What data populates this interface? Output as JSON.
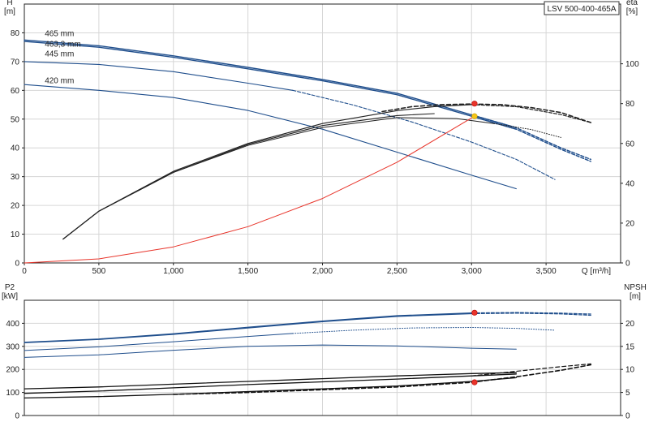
{
  "chart_data": [
    {
      "name": "pump-curve",
      "type": "line",
      "title": "LSV 500-400-465A",
      "xlabel": "Q [m³/h]",
      "ylabel": "H\n[m]",
      "y2label": "eta\n[%]",
      "xlim": [
        0,
        4000
      ],
      "ylim": [
        0,
        90
      ],
      "y2lim": [
        0,
        130
      ],
      "x_ticks": [
        0,
        500,
        1000,
        1500,
        2000,
        2500,
        3000,
        3500
      ],
      "x_tick_labels": [
        "0",
        "500",
        "1,000",
        "1,500",
        "2,000",
        "2,500",
        "3,000",
        "3,500"
      ],
      "y_ticks": [
        0,
        10,
        20,
        30,
        40,
        50,
        60,
        70,
        80
      ],
      "y2_ticks": [
        0,
        20,
        40,
        60,
        80,
        100
      ],
      "grid": true,
      "annotations": [
        {
          "text": "465 mm",
          "x": 50,
          "y": 78.8
        },
        {
          "text": "463,3 mm",
          "x": 50,
          "y": 75.2
        },
        {
          "text": "445 mm",
          "x": 50,
          "y": 71.8
        },
        {
          "text": "420 mm",
          "x": 50,
          "y": 62.5
        }
      ],
      "series": [
        {
          "role": "head",
          "axis": "left",
          "color": "#1f4e8c",
          "width": 1.4,
          "dash": "",
          "x": [
            0,
            500,
            1000,
            1500,
            2000,
            2500,
            3000,
            3300
          ],
          "y": [
            77.5,
            75.5,
            72,
            68,
            63.8,
            59,
            51.5,
            47
          ]
        },
        {
          "role": "head",
          "axis": "left",
          "color": "#1f4e8c",
          "width": 1.4,
          "dash": "4 2",
          "x": [
            3000,
            3300,
            3600,
            3800
          ],
          "y": [
            51.5,
            47,
            40,
            36
          ]
        },
        {
          "role": "head",
          "axis": "left",
          "color": "#1f4e8c",
          "width": 1.4,
          "dash": "",
          "x": [
            0,
            500,
            1000,
            1500,
            2000,
            2500,
            3000,
            3300
          ],
          "y": [
            77,
            75,
            71.5,
            67.5,
            63.3,
            58.5,
            51,
            46.5
          ]
        },
        {
          "role": "head",
          "axis": "left",
          "color": "#1f4e8c",
          "width": 1.4,
          "dash": "4 2",
          "x": [
            3000,
            3300,
            3600,
            3800
          ],
          "y": [
            51,
            46.5,
            39.5,
            35.3
          ]
        },
        {
          "role": "head",
          "axis": "left",
          "color": "#1f4e8c",
          "width": 1.1,
          "dash": "",
          "x": [
            0,
            500,
            1000,
            1500,
            1800
          ],
          "y": [
            70,
            69,
            66.5,
            62.5,
            60
          ]
        },
        {
          "role": "head",
          "axis": "left",
          "color": "#1f4e8c",
          "width": 1.1,
          "dash": "4 2",
          "x": [
            1800,
            2200,
            2600,
            3000,
            3300,
            3560
          ],
          "y": [
            60,
            55,
            49,
            42,
            36,
            29
          ]
        },
        {
          "role": "head",
          "axis": "left",
          "color": "#1f4e8c",
          "width": 1.1,
          "dash": "",
          "x": [
            0,
            500,
            1000,
            1500,
            2000,
            2500,
            3000,
            3300
          ],
          "y": [
            62,
            60,
            57.5,
            53,
            46.5,
            38.5,
            30.5,
            25.8
          ]
        },
        {
          "role": "eta",
          "axis": "right",
          "color": "#222222",
          "width": 1.2,
          "dash": "",
          "x": [
            260,
            500,
            1000,
            1500,
            2000,
            2500,
            2750,
            3000
          ],
          "y": [
            12,
            26,
            46,
            60,
            70,
            76.5,
            78.5,
            79.5
          ]
        },
        {
          "role": "eta",
          "axis": "right",
          "color": "#222222",
          "width": 1.2,
          "dash": "4 2",
          "x": [
            3000,
            3300,
            3600,
            3800
          ],
          "y": [
            79.5,
            78.5,
            74.5,
            70.5
          ]
        },
        {
          "role": "eta",
          "axis": "right",
          "color": "#222222",
          "width": 1.1,
          "dash": "",
          "x": [
            260,
            500,
            1000,
            1500,
            2000,
            2500,
            2750
          ],
          "y": [
            12,
            26,
            45.5,
            59.5,
            69,
            74,
            75
          ]
        },
        {
          "role": "eta",
          "axis": "right",
          "color": "#222222",
          "width": 1.0,
          "dash": "",
          "x": [
            260,
            500,
            1000,
            1500,
            2000,
            2500,
            2900,
            3150
          ],
          "y": [
            12,
            26,
            45.5,
            59,
            68,
            73,
            72.5,
            70
          ]
        },
        {
          "role": "eta",
          "axis": "right",
          "color": "#222222",
          "width": 1.0,
          "dash": "1 2",
          "x": [
            3150,
            3400,
            3600
          ],
          "y": [
            70,
            67,
            63
          ]
        },
        {
          "role": "eta",
          "axis": "right",
          "color": "#222222",
          "width": 1.6,
          "dash": "5 3",
          "x": [
            2400,
            2600,
            2800,
            3000,
            3200,
            3400,
            3600,
            3800
          ],
          "y": [
            76,
            78.5,
            79.5,
            79.8,
            79.5,
            78,
            75.5,
            70.5
          ]
        },
        {
          "role": "system",
          "axis": "left",
          "color": "#e8342a",
          "width": 1.0,
          "dash": "",
          "x": [
            0,
            500,
            1000,
            1500,
            2000,
            2500,
            3020
          ],
          "y": [
            0,
            1.4,
            5.6,
            12.6,
            22.4,
            35,
            51
          ]
        }
      ],
      "points": [
        {
          "x": 3020,
          "y": 51,
          "axis": "left",
          "color": "#f5c518"
        },
        {
          "x": 3020,
          "y": 80,
          "axis": "right",
          "color": "#e8342a"
        }
      ]
    },
    {
      "name": "power-npsh",
      "type": "line",
      "xlabel": "",
      "ylabel": "P2\n[kW]",
      "y2label": "NPSH\n[m]",
      "xlim": [
        0,
        4000
      ],
      "ylim": [
        0,
        500
      ],
      "y2lim": [
        0,
        25
      ],
      "y_ticks": [
        0,
        100,
        200,
        300,
        400
      ],
      "y2_ticks": [
        0,
        5,
        10,
        15,
        20
      ],
      "grid": true,
      "series": [
        {
          "role": "power",
          "axis": "left",
          "color": "#1f4e8c",
          "width": 1.2,
          "dash": "",
          "x": [
            0,
            500,
            1000,
            1500,
            2000,
            2500,
            3000
          ],
          "y": [
            318,
            332,
            355,
            383,
            410,
            433,
            445
          ]
        },
        {
          "role": "power",
          "axis": "left",
          "color": "#1f4e8c",
          "width": 1.2,
          "dash": "4 2",
          "x": [
            3000,
            3300,
            3600,
            3800
          ],
          "y": [
            445,
            447,
            444,
            440
          ]
        },
        {
          "role": "power",
          "axis": "left",
          "color": "#1f4e8c",
          "width": 1.2,
          "dash": "",
          "x": [
            0,
            500,
            1000,
            1500,
            2000,
            2500,
            3000
          ],
          "y": [
            316,
            330,
            352,
            380,
            407,
            430,
            442
          ]
        },
        {
          "role": "power",
          "axis": "left",
          "color": "#1f4e8c",
          "width": 1.2,
          "dash": "4 2",
          "x": [
            3000,
            3300,
            3600,
            3800
          ],
          "y": [
            442,
            444,
            441,
            435
          ]
        },
        {
          "role": "power",
          "axis": "left",
          "color": "#1f4e8c",
          "width": 1.0,
          "dash": "",
          "x": [
            0,
            500,
            1000,
            1500,
            1800
          ],
          "y": [
            282,
            298,
            320,
            343,
            356
          ]
        },
        {
          "role": "power",
          "axis": "left",
          "color": "#1f4e8c",
          "width": 1.0,
          "dash": "1 2",
          "x": [
            1800,
            2200,
            2600,
            3000,
            3300,
            3560
          ],
          "y": [
            356,
            370,
            380,
            382,
            378,
            370
          ]
        },
        {
          "role": "power",
          "axis": "left",
          "color": "#1f4e8c",
          "width": 1.0,
          "dash": "",
          "x": [
            0,
            500,
            1000,
            1500,
            2000,
            2500,
            3000,
            3300
          ],
          "y": [
            252,
            263,
            283,
            300,
            306,
            302,
            292,
            288
          ]
        },
        {
          "role": "npsh",
          "axis": "right",
          "color": "#111111",
          "width": 1.3,
          "dash": "",
          "x": [
            0,
            500,
            1000,
            1500,
            2000,
            2500,
            3000,
            3300
          ],
          "y": [
            5.8,
            6.2,
            6.8,
            7.4,
            8.0,
            8.6,
            9.1,
            9.3
          ]
        },
        {
          "role": "npsh",
          "axis": "right",
          "color": "#111111",
          "width": 1.3,
          "dash": "",
          "x": [
            0,
            500,
            1000,
            1500,
            2000,
            2500,
            3000,
            3300
          ],
          "y": [
            4.8,
            5.3,
            6.0,
            6.7,
            7.3,
            7.9,
            8.6,
            9.0
          ]
        },
        {
          "role": "npsh",
          "axis": "right",
          "color": "#111111",
          "width": 1.3,
          "dash": "",
          "x": [
            0,
            500,
            1000,
            1500,
            2000,
            2500,
            3000,
            3300
          ],
          "y": [
            3.8,
            4.1,
            4.6,
            5.2,
            5.8,
            6.4,
            7.4,
            8.2
          ]
        },
        {
          "role": "npsh",
          "axis": "right",
          "color": "#111111",
          "width": 1.2,
          "dash": "5 3",
          "x": [
            3000,
            3300,
            3600,
            3800
          ],
          "y": [
            8.6,
            9.6,
            10.6,
            11.2
          ]
        },
        {
          "role": "npsh",
          "axis": "right",
          "color": "#111111",
          "width": 1.6,
          "dash": "5 3",
          "x": [
            1000,
            1500,
            2000,
            2500,
            3000,
            3300,
            3600,
            3800
          ],
          "y": [
            4.6,
            5.0,
            5.6,
            6.2,
            7.2,
            8.4,
            9.8,
            11.0
          ]
        }
      ],
      "points": [
        {
          "x": 3020,
          "y": 446,
          "axis": "left",
          "color": "#e8342a"
        },
        {
          "x": 3020,
          "y": 7.2,
          "axis": "right",
          "color": "#e8342a"
        }
      ]
    }
  ]
}
